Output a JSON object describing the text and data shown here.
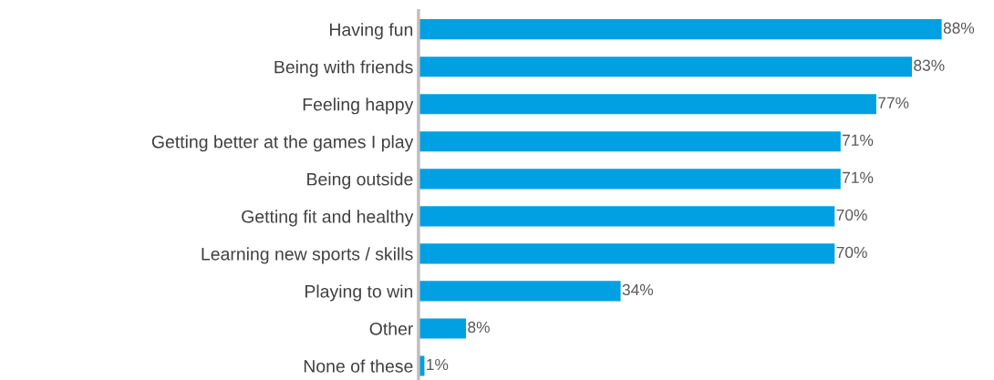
{
  "chart_data": {
    "type": "bar",
    "orientation": "horizontal",
    "categories": [
      "Having fun",
      "Being with friends",
      "Feeling happy",
      "Getting better at the games I play",
      "Being outside",
      "Getting fit and healthy",
      "Learning new sports / skills",
      "Playing to win",
      "Other",
      "None of these"
    ],
    "values": [
      88,
      83,
      77,
      71,
      71,
      70,
      70,
      34,
      8,
      1
    ],
    "value_labels": [
      "88%",
      "83%",
      "77%",
      "71%",
      "71%",
      "70%",
      "70%",
      "34%",
      "8%",
      "1%"
    ],
    "color": "#00a0e3",
    "grid": false,
    "legend": false
  }
}
